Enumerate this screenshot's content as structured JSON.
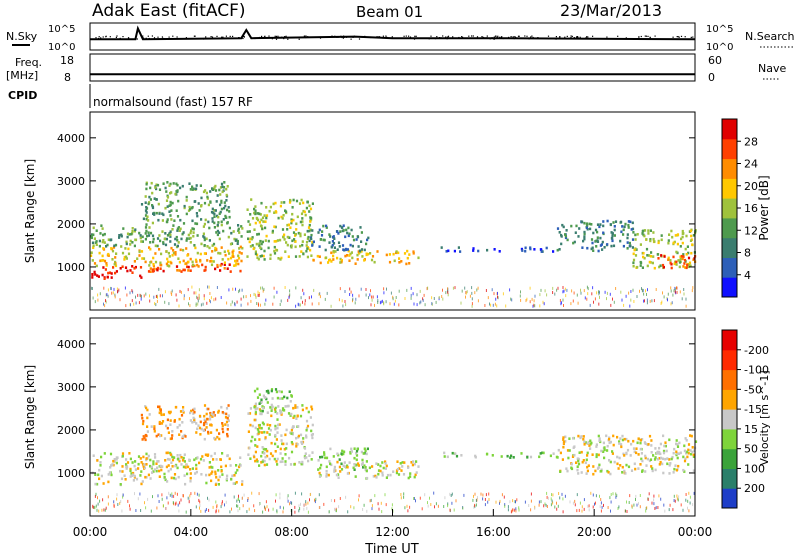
{
  "header": {
    "station": "Adak East (fitACF)",
    "beam": "Beam 01",
    "date": "23/Mar/2013"
  },
  "left_labels": {
    "nsky": "N.Sky",
    "freq": "Freq.",
    "mhz": "[MHz]",
    "cpid": "CPID"
  },
  "right_labels": {
    "nsearch": "N.Search",
    "nave": "Nave"
  },
  "cpid_text": "normalsound (fast) 157 RF",
  "chart_data": [
    {
      "type": "line",
      "name": "noise",
      "ytick_labels_left": [
        "10^5",
        "10^0"
      ],
      "ytick_labels_right": [
        "10^5",
        "10^0"
      ],
      "yscale": "log",
      "x": [
        0,
        1.8,
        1.9,
        2.1,
        6,
        6.2,
        6.4,
        10.5,
        12,
        16,
        20,
        24
      ],
      "values": [
        100,
        100,
        10000,
        100,
        150,
        5000,
        150,
        300,
        150,
        150,
        120,
        100
      ]
    },
    {
      "type": "line",
      "name": "freq-nave",
      "ytick_labels_left": [
        "18",
        "8"
      ],
      "ytick_labels_right": [
        "60",
        "0"
      ],
      "x": [
        0,
        24
      ],
      "values": [
        10.5,
        10.5
      ]
    },
    {
      "type": "heatmap",
      "name": "power",
      "ylabel": "Slant Range [km]",
      "yticks": [
        1000,
        2000,
        3000,
        4000
      ],
      "ylim": [
        0,
        4600
      ],
      "xlim": [
        0,
        24
      ],
      "colorbar": {
        "label": "Power [dB]",
        "ticks": [
          "4",
          "8",
          "12",
          "16",
          "20",
          "24",
          "28"
        ],
        "colors": [
          "#1010ff",
          "#2d5fb8",
          "#3a7d6f",
          "#4e9a4e",
          "#9fc23c",
          "#ffc800",
          "#ff8c00",
          "#ff4000",
          "#e00000"
        ]
      },
      "bands": [
        {
          "t0": 0,
          "t1": 2,
          "r0": 750,
          "r1": 1050,
          "level": 8
        },
        {
          "t0": 2,
          "t1": 6,
          "r0": 900,
          "r1": 1100,
          "level": 7
        },
        {
          "t0": 0,
          "t1": 6,
          "r0": 1050,
          "r1": 1500,
          "level": 5
        },
        {
          "t0": 0,
          "t1": 6,
          "r0": 1500,
          "r1": 2000,
          "level": 3
        },
        {
          "t0": 2,
          "t1": 5.5,
          "r0": 2000,
          "r1": 3000,
          "level": 3
        },
        {
          "t0": 6.2,
          "t1": 8.8,
          "r0": 1200,
          "r1": 2600,
          "level": 4
        },
        {
          "t0": 8.8,
          "t1": 13,
          "r0": 1100,
          "r1": 1400,
          "level": 5
        },
        {
          "t0": 8.5,
          "t1": 11,
          "r0": 1400,
          "r1": 2000,
          "level": 2
        },
        {
          "t0": 13.8,
          "t1": 18.5,
          "r0": 1380,
          "r1": 1480,
          "level": 1
        },
        {
          "t0": 18.5,
          "t1": 21.5,
          "r0": 1400,
          "r1": 2100,
          "level": 2
        },
        {
          "t0": 21.5,
          "t1": 24,
          "r0": 1000,
          "r1": 1900,
          "level": 4
        },
        {
          "t0": 22.5,
          "t1": 24,
          "r0": 1000,
          "r1": 1300,
          "level": 7
        }
      ]
    },
    {
      "type": "heatmap",
      "name": "velocity",
      "ylabel": "Slant Range [km]",
      "yticks": [
        1000,
        2000,
        3000,
        4000
      ],
      "ylim": [
        0,
        4600
      ],
      "xlim": [
        0,
        24
      ],
      "xticks": [
        "00:00",
        "04:00",
        "08:00",
        "12:00",
        "16:00",
        "20:00",
        "00:00"
      ],
      "xlabel": "Time UT",
      "colorbar": {
        "label": "Velocity [m s^-1]",
        "ticks": [
          "200",
          "100",
          "50",
          "15",
          "-15",
          "-50",
          "-100",
          "-200"
        ],
        "colors": [
          "#1e3ec8",
          "#2a7f6a",
          "#3aa33a",
          "#7ed43a",
          "#c8c8c8",
          "#ffa500",
          "#ff7000",
          "#ff2a00",
          "#e60000"
        ]
      },
      "bands": [
        {
          "t0": 0,
          "t1": 6,
          "r0": 750,
          "r1": 1500,
          "level": 4
        },
        {
          "t0": 2,
          "t1": 5.5,
          "r0": 1800,
          "r1": 2600,
          "level": 5
        },
        {
          "t0": 6.2,
          "t1": 8.8,
          "r0": 1200,
          "r1": 2600,
          "level": 4
        },
        {
          "t0": 6.5,
          "t1": 8,
          "r0": 2400,
          "r1": 3000,
          "level": 3
        },
        {
          "t0": 9,
          "t1": 11,
          "r0": 1100,
          "r1": 1600,
          "level": 3
        },
        {
          "t0": 9,
          "t1": 13,
          "r0": 900,
          "r1": 1300,
          "level": 4
        },
        {
          "t0": 14,
          "t1": 18.5,
          "r0": 1380,
          "r1": 1500,
          "level": 3
        },
        {
          "t0": 18.5,
          "t1": 24,
          "r0": 1000,
          "r1": 1900,
          "level": 4
        }
      ]
    }
  ]
}
